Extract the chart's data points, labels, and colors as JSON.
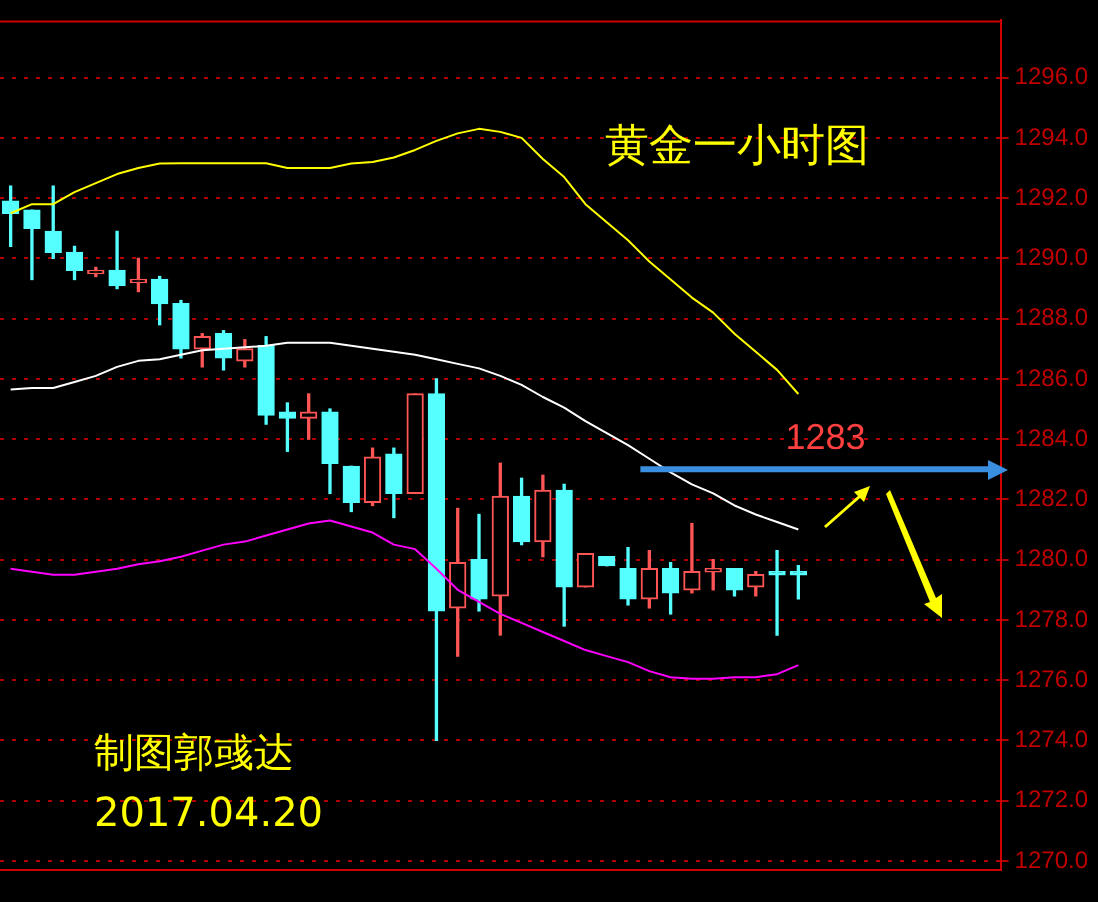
{
  "chart_data": {
    "type": "candlestick",
    "title": "黄金一小时图",
    "annotations": [
      "制图郭彧达",
      "2017.04.20"
    ],
    "categories": [
      null,
      null,
      null,
      null,
      null,
      null,
      null,
      null,
      null,
      null,
      null,
      null,
      null,
      null,
      null,
      null,
      null,
      null,
      null,
      null,
      null,
      null,
      null,
      null,
      null,
      null,
      null,
      null,
      null,
      null,
      null,
      null,
      null,
      null,
      null,
      null,
      null,
      null,
      null,
      null,
      null,
      null,
      null,
      null,
      null,
      null,
      null
    ],
    "ohlc": [
      [
        1291.9,
        1292.4,
        1290.4,
        1291.5
      ],
      [
        1291.6,
        1291.6,
        1289.3,
        1291.0
      ],
      [
        1290.9,
        1292.4,
        1290.0,
        1290.2
      ],
      [
        1290.2,
        1290.4,
        1289.3,
        1289.6
      ],
      [
        1289.5,
        1289.7,
        1289.4,
        1289.6
      ],
      [
        1289.6,
        1290.9,
        1289.0,
        1289.1
      ],
      [
        1289.2,
        1290.0,
        1288.9,
        1289.3
      ],
      [
        1289.3,
        1289.4,
        1287.8,
        1288.5
      ],
      [
        1288.5,
        1288.6,
        1286.7,
        1287.0
      ],
      [
        1287.0,
        1287.5,
        1286.4,
        1287.4
      ],
      [
        1287.5,
        1287.6,
        1286.3,
        1286.7
      ],
      [
        1286.6,
        1287.3,
        1286.4,
        1287.0
      ],
      [
        1287.1,
        1287.4,
        1284.5,
        1284.8
      ],
      [
        1284.9,
        1285.2,
        1283.6,
        1284.7
      ],
      [
        1284.7,
        1285.5,
        1284.0,
        1284.9
      ],
      [
        1284.9,
        1285.0,
        1282.2,
        1283.2
      ],
      [
        1283.1,
        1283.1,
        1281.6,
        1281.9
      ],
      [
        1281.9,
        1283.7,
        1281.8,
        1283.4
      ],
      [
        1283.5,
        1283.7,
        1281.4,
        1282.2
      ],
      [
        1282.2,
        1285.5,
        1282.2,
        1285.5
      ],
      [
        1285.5,
        1286.0,
        1274.0,
        1278.3
      ],
      [
        1278.4,
        1281.7,
        1276.8,
        1279.9
      ],
      [
        1280.0,
        1281.5,
        1278.3,
        1278.7
      ],
      [
        1278.8,
        1283.2,
        1277.5,
        1282.1
      ],
      [
        1282.1,
        1282.7,
        1280.5,
        1280.6
      ],
      [
        1280.6,
        1282.8,
        1280.1,
        1282.3
      ],
      [
        1282.3,
        1282.5,
        1277.8,
        1279.1
      ],
      [
        1279.1,
        1280.2,
        1279.1,
        1280.2
      ],
      [
        1280.1,
        1280.1,
        1279.8,
        1279.8
      ],
      [
        1279.7,
        1280.4,
        1278.5,
        1278.7
      ],
      [
        1278.7,
        1280.3,
        1278.4,
        1279.7
      ],
      [
        1279.7,
        1279.9,
        1278.2,
        1278.9
      ],
      [
        1279.0,
        1281.2,
        1278.9,
        1279.6
      ],
      [
        1279.6,
        1280.0,
        1279.0,
        1279.7
      ],
      [
        1279.7,
        1279.7,
        1278.8,
        1279.0
      ],
      [
        1279.1,
        1279.6,
        1278.8,
        1279.5
      ],
      [
        1279.6,
        1280.3,
        1277.5,
        1279.5
      ],
      [
        1279.6,
        1279.8,
        1278.7,
        1279.5
      ],
      null,
      null,
      null,
      null,
      null,
      null,
      null,
      null,
      null
    ],
    "colors": [
      "#55ffff",
      "#55ffff",
      "#55ffff",
      "#55ffff",
      "#ff5555",
      "#55ffff",
      "#ff5555",
      "#55ffff",
      "#55ffff",
      "#ff5555",
      "#55ffff",
      "#ff5555",
      "#55ffff",
      "#55ffff",
      "#ff5555",
      "#55ffff",
      "#55ffff",
      "#ff5555",
      "#55ffff",
      "#ff5555",
      "#55ffff",
      "#ff5555",
      "#55ffff",
      "#ff5555",
      "#55ffff",
      "#ff5555",
      "#55ffff",
      "#ff5555",
      "#55ffff",
      "#55ffff",
      "#ff5555",
      "#55ffff",
      "#ff5555",
      "#ff5555",
      "#55ffff",
      "#ff5555",
      "#55ffff",
      "#55ffff",
      null,
      null,
      null,
      null,
      null,
      null,
      null,
      null,
      null
    ],
    "series": [
      {
        "type": "line",
        "color": "#ffff00",
        "values": [
          1291.5,
          1291.8,
          1291.8,
          1292.2,
          1292.5,
          1292.8,
          1293.0,
          1293.15,
          1293.16,
          1293.16,
          1293.16,
          1293.16,
          1293.16,
          1293.0,
          1293.0,
          1293.0,
          1293.15,
          1293.2,
          1293.35,
          1293.6,
          1293.9,
          1294.15,
          1294.3,
          1294.2,
          1294.0,
          1293.3,
          1292.7,
          1291.8,
          1291.2,
          1290.6,
          1289.9,
          1289.3,
          1288.7,
          1288.2,
          1287.5,
          1286.9,
          1286.3,
          1285.5,
          null,
          null,
          null,
          null,
          null,
          null,
          null,
          null,
          null
        ]
      },
      {
        "type": "line",
        "color": "#ffffff",
        "values": [
          1285.65,
          1285.7,
          1285.7,
          1285.9,
          1286.1,
          1286.4,
          1286.6,
          1286.65,
          1286.8,
          1286.95,
          1287.0,
          1287.05,
          1287.1,
          1287.2,
          1287.2,
          1287.2,
          1287.1,
          1287.0,
          1286.9,
          1286.8,
          1286.65,
          1286.5,
          1286.35,
          1286.1,
          1285.8,
          1285.4,
          1285.05,
          1284.6,
          1284.2,
          1283.8,
          1283.35,
          1282.9,
          1282.5,
          1282.2,
          1281.8,
          1281.5,
          1281.25,
          1281.0,
          null,
          null,
          null,
          null,
          null,
          null,
          null,
          null,
          null
        ]
      },
      {
        "type": "line",
        "color": "#ff00ff",
        "values": [
          1279.7,
          1279.6,
          1279.5,
          1279.5,
          1279.6,
          1279.7,
          1279.85,
          1279.95,
          1280.1,
          1280.3,
          1280.5,
          1280.6,
          1280.8,
          1281.0,
          1281.2,
          1281.3,
          1281.1,
          1280.9,
          1280.5,
          1280.35,
          1279.7,
          1279.0,
          1278.6,
          1278.2,
          1277.9,
          1277.6,
          1277.3,
          1277.0,
          1276.8,
          1276.6,
          1276.3,
          1276.1,
          1276.05,
          1276.05,
          1276.1,
          1276.1,
          1276.2,
          1276.5,
          null,
          null,
          null,
          null,
          null,
          null,
          null,
          null,
          null
        ]
      }
    ],
    "marker": "none",
    "line_style": "solid",
    "ref_lines": [
      {
        "axis": "y",
        "value": 1283,
        "label": "1283",
        "color": "#3a8fe0"
      }
    ],
    "ylim": [
      1269.7,
      1297.9
    ],
    "yticks": [
      {
        "value": 1270,
        "label": "1270.0"
      },
      {
        "value": 1272,
        "label": "1272.0"
      },
      {
        "value": 1274,
        "label": "1274.0"
      },
      {
        "value": 1276,
        "label": "1276.0"
      },
      {
        "value": 1278,
        "label": "1278.0"
      },
      {
        "value": 1280,
        "label": "1280.0"
      },
      {
        "value": 1282,
        "label": "1282.0"
      },
      {
        "value": 1284,
        "label": "1284.0"
      },
      {
        "value": 1286,
        "label": "1286.0"
      },
      {
        "value": 1288,
        "label": "1288.0"
      },
      {
        "value": 1290,
        "label": "1290.0"
      },
      {
        "value": 1292,
        "label": "1292.0"
      },
      {
        "value": 1294,
        "label": "1294.0"
      },
      {
        "value": 1296,
        "label": "1296.0"
      }
    ],
    "grid": "y",
    "legend": false,
    "tick_labels": "y"
  }
}
